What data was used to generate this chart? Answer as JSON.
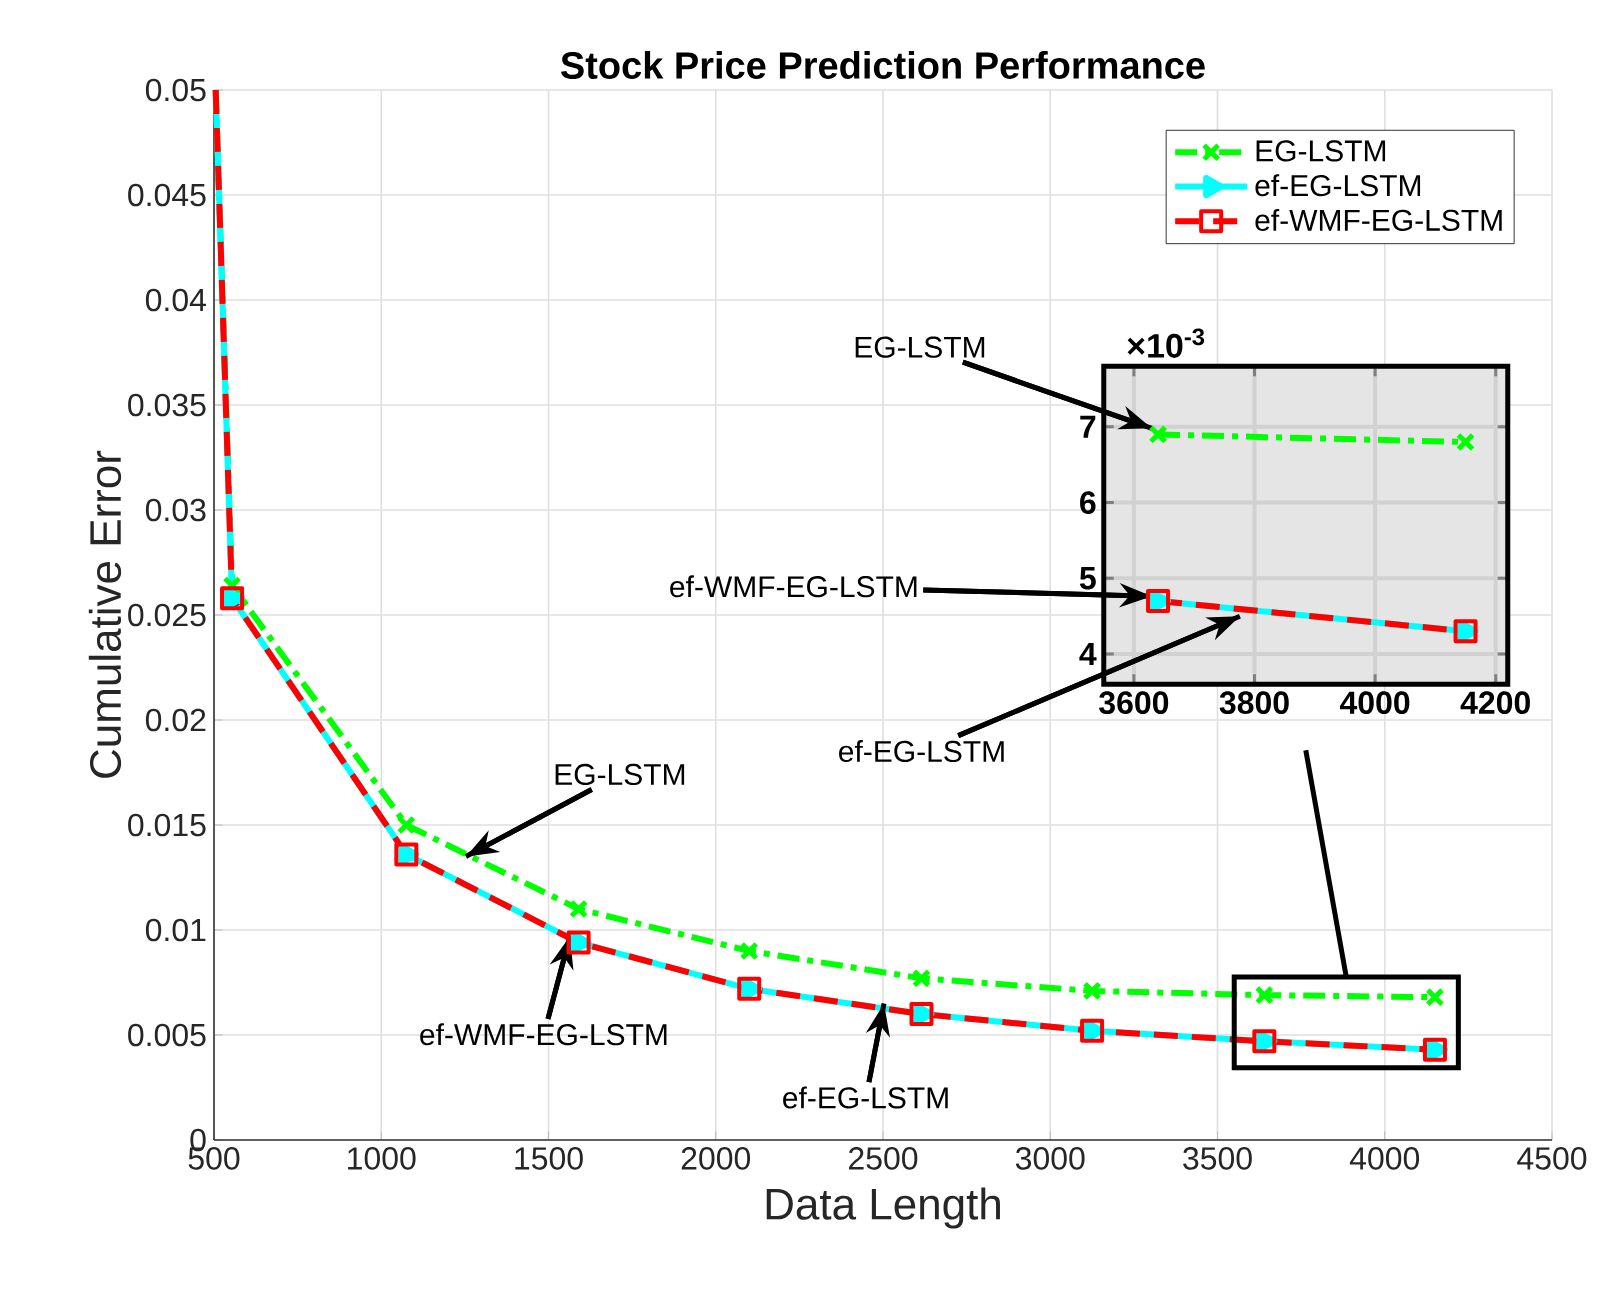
{
  "chart_data": [
    {
      "type": "line",
      "title": "Stock Price Prediction Performance",
      "xlabel": "Data Length",
      "ylabel": "Cumulative Error",
      "x": [
        505,
        554,
        1075,
        1590,
        2100,
        2615,
        3125,
        3640,
        4150
      ],
      "series": [
        {
          "name": "EG-LSTM",
          "color": "#00ff00",
          "values": [
            0.05,
            0.0264,
            0.015,
            0.011,
            0.009,
            0.0077,
            0.0071,
            0.0069,
            0.0068
          ],
          "marker": "cross",
          "line_style": "dashdot"
        },
        {
          "name": "ef-EG-LSTM",
          "color": "#00ffff",
          "values": [
            0.05,
            0.0258,
            0.0136,
            0.0094,
            0.0072,
            0.006,
            0.0052,
            0.0047,
            0.0043
          ],
          "marker": "triangle",
          "line_style": "solid"
        },
        {
          "name": "ef-WMF-EG-LSTM",
          "color": "#ff0000",
          "values": [
            0.05,
            0.0258,
            0.0136,
            0.0094,
            0.0072,
            0.006,
            0.0052,
            0.0047,
            0.0043
          ],
          "marker": "square",
          "line_style": "dashed"
        }
      ],
      "xlim": [
        500,
        4500
      ],
      "ylim": [
        0,
        0.05
      ],
      "xticks": [
        500,
        1000,
        1500,
        2000,
        2500,
        3000,
        3500,
        4000,
        4500
      ],
      "yticks": [
        0,
        0.005,
        0.01,
        0.015,
        0.02,
        0.025,
        0.03,
        0.035,
        0.04,
        0.045,
        0.05
      ],
      "grid": true,
      "legend": "top right",
      "annotations": [
        {
          "text": "EG-LSTM",
          "x": 1253,
          "y": 0.0135
        },
        {
          "text": "ef-WMF-EG-LSTM",
          "x": 1564,
          "y": 0.0097
        },
        {
          "text": "ef-EG-LSTM",
          "x": 2503,
          "y": 0.0065
        }
      ]
    },
    {
      "type": "line",
      "x": [
        3640,
        4150
      ],
      "series": [
        {
          "color": "#00ff00",
          "values": [
            6.9,
            6.8
          ],
          "marker": "cross",
          "line_style": "dashdot"
        },
        {
          "color": "#00ffff",
          "values": [
            4.7,
            4.3
          ],
          "marker": "triangle",
          "line_style": "solid"
        },
        {
          "color": "#ff0000",
          "values": [
            4.7,
            4.3
          ],
          "marker": "square",
          "line_style": "dashed"
        }
      ],
      "xlim": [
        3550,
        4220
      ],
      "ylim": [
        3.6,
        7.8
      ],
      "xticks": [
        3600,
        3800,
        4000,
        4200
      ],
      "yticks": [
        4,
        5,
        6,
        7
      ],
      "grid": true,
      "annotations": [
        "EG-LSTM",
        "ef-WMF-EG-LSTM",
        "ef-EG-LSTM",
        "×10$^{-3}$"
      ]
    }
  ]
}
